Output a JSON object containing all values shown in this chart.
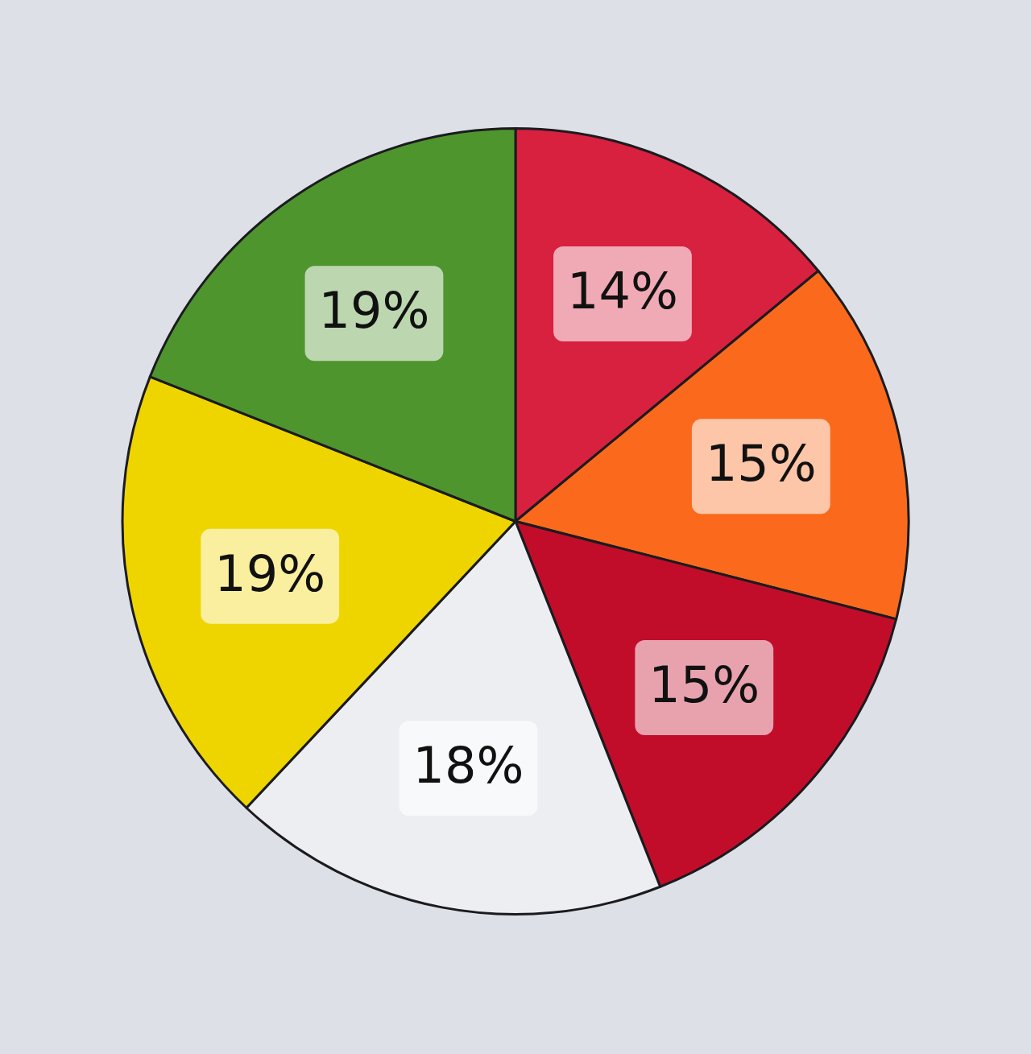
{
  "chart_data": {
    "type": "pie",
    "categories": [
      null,
      null,
      null,
      null,
      null,
      null
    ],
    "values": [
      14,
      15,
      15,
      18,
      19,
      19
    ],
    "colors": [
      "#d8203f",
      "#fb6a1c",
      "#c20d2a",
      "#eceef2",
      "#efd500",
      "#4f952e"
    ],
    "value_labels": [
      "14%",
      "15%",
      "15%",
      "18%",
      "19%",
      "19%"
    ]
  }
}
